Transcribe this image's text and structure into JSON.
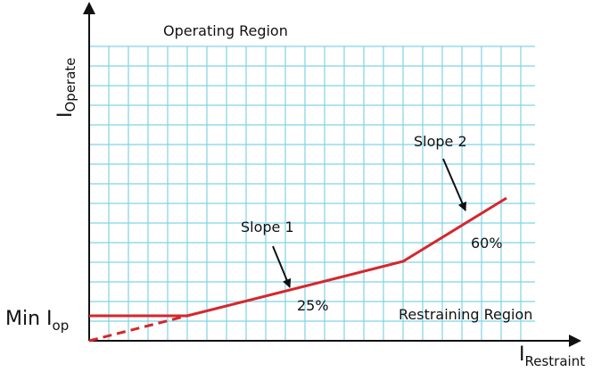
{
  "labels": {
    "operating_region": "Operating Region",
    "restraining_region": "Restraining Region",
    "y_axis_main": "I",
    "y_axis_sub": "Operate",
    "x_axis_main": "I",
    "x_axis_sub": "Restraint",
    "min_iop_main": "Min I",
    "min_iop_sub": "op",
    "slope1": "Slope 1",
    "slope1_pct": "25%",
    "slope2": "Slope 2",
    "slope2_pct": "60%"
  },
  "colors": {
    "grid": "#7fd3e6",
    "curve": "#d6262b",
    "axis": "#111111",
    "arrow": "#111111"
  },
  "chart_data": {
    "type": "line",
    "segments": [
      {
        "name": "minimum-pickup",
        "slope_percent": 0
      },
      {
        "name": "slope-1",
        "slope_percent": 25
      },
      {
        "name": "slope-2",
        "slope_percent": 60
      }
    ]
  }
}
